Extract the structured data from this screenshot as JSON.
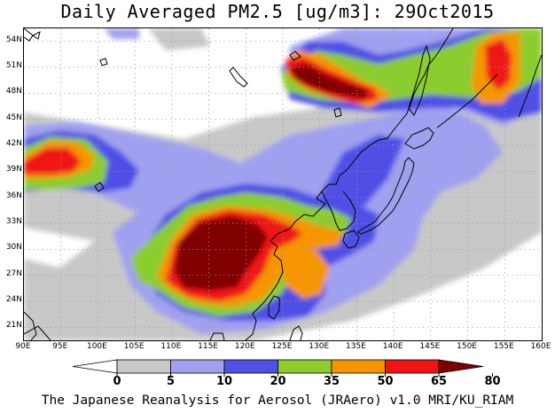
{
  "title": "Daily Averaged PM2.5 [ug/m3]: 29Oct2015",
  "credit": "The Japanese Reanalysis for Aerosol (JRAero) v1.0 MRI/KU_RIAM",
  "map": {
    "lon_range": [
      90,
      160
    ],
    "lat_range": [
      19.5,
      55.5
    ],
    "lon_ticks": [
      "90E",
      "95E",
      "100E",
      "105E",
      "110E",
      "115E",
      "120E",
      "125E",
      "130E",
      "135E",
      "140E",
      "145E",
      "150E",
      "155E",
      "160E"
    ],
    "lat_ticks": [
      "54N",
      "51N",
      "48N",
      "45N",
      "42N",
      "39N",
      "36N",
      "33N",
      "30N",
      "27N",
      "24N",
      "21N"
    ]
  },
  "colorbar": {
    "labels": [
      "0",
      "5",
      "10",
      "20",
      "35",
      "50",
      "65",
      "80"
    ],
    "colors": [
      "#ffffff",
      "#c8c8c8",
      "#a0a0f0",
      "#5050e6",
      "#8ccd2d",
      "#f59600",
      "#f01414",
      "#800000"
    ]
  }
}
